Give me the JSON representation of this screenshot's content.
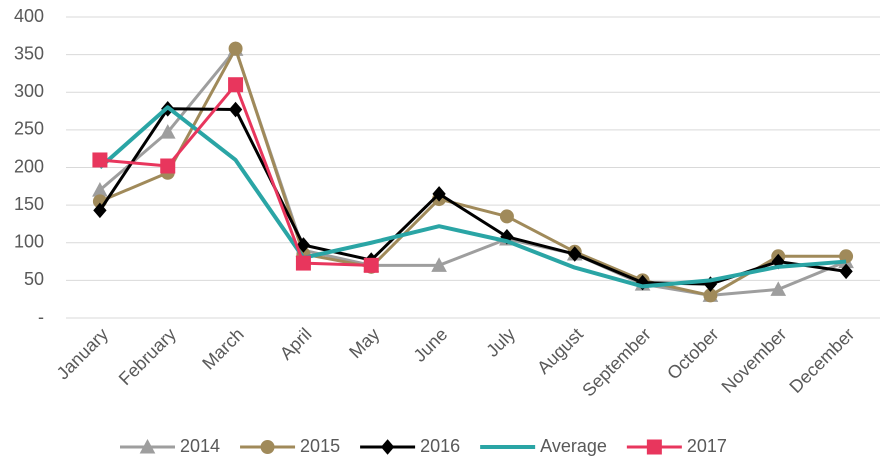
{
  "chart_data": {
    "type": "line",
    "categories": [
      "January",
      "February",
      "March",
      "April",
      "May",
      "June",
      "July",
      "August",
      "September",
      "October",
      "November",
      "December"
    ],
    "series": [
      {
        "name": "2014",
        "color": "#9e9e9e",
        "marker": "triangle",
        "values": [
          170,
          247,
          357,
          90,
          70,
          70,
          105,
          85,
          45,
          30,
          38,
          75
        ]
      },
      {
        "name": "2015",
        "color": "#a08a5a",
        "marker": "circle",
        "values": [
          155,
          193,
          358,
          85,
          68,
          158,
          135,
          88,
          50,
          30,
          82,
          82
        ]
      },
      {
        "name": "2016",
        "color": "#000000",
        "marker": "diamond",
        "values": [
          143,
          278,
          277,
          97,
          77,
          165,
          108,
          85,
          47,
          45,
          75,
          62
        ]
      },
      {
        "name": "Average",
        "color": "#2aa5a5",
        "marker": "none",
        "values": [
          200,
          280,
          210,
          80,
          100,
          122,
          102,
          67,
          42,
          50,
          68,
          75
        ]
      },
      {
        "name": "2017",
        "color": "#e8365d",
        "marker": "square",
        "values": [
          210,
          202,
          310,
          73,
          70,
          null,
          null,
          null,
          null,
          null,
          null,
          null
        ]
      }
    ],
    "ylim": [
      0,
      400
    ],
    "yticks": [
      {
        "value": 0,
        "label": "-"
      },
      50,
      100,
      150,
      200,
      250,
      300,
      350,
      400
    ],
    "grid": true,
    "legend": "bottom"
  }
}
